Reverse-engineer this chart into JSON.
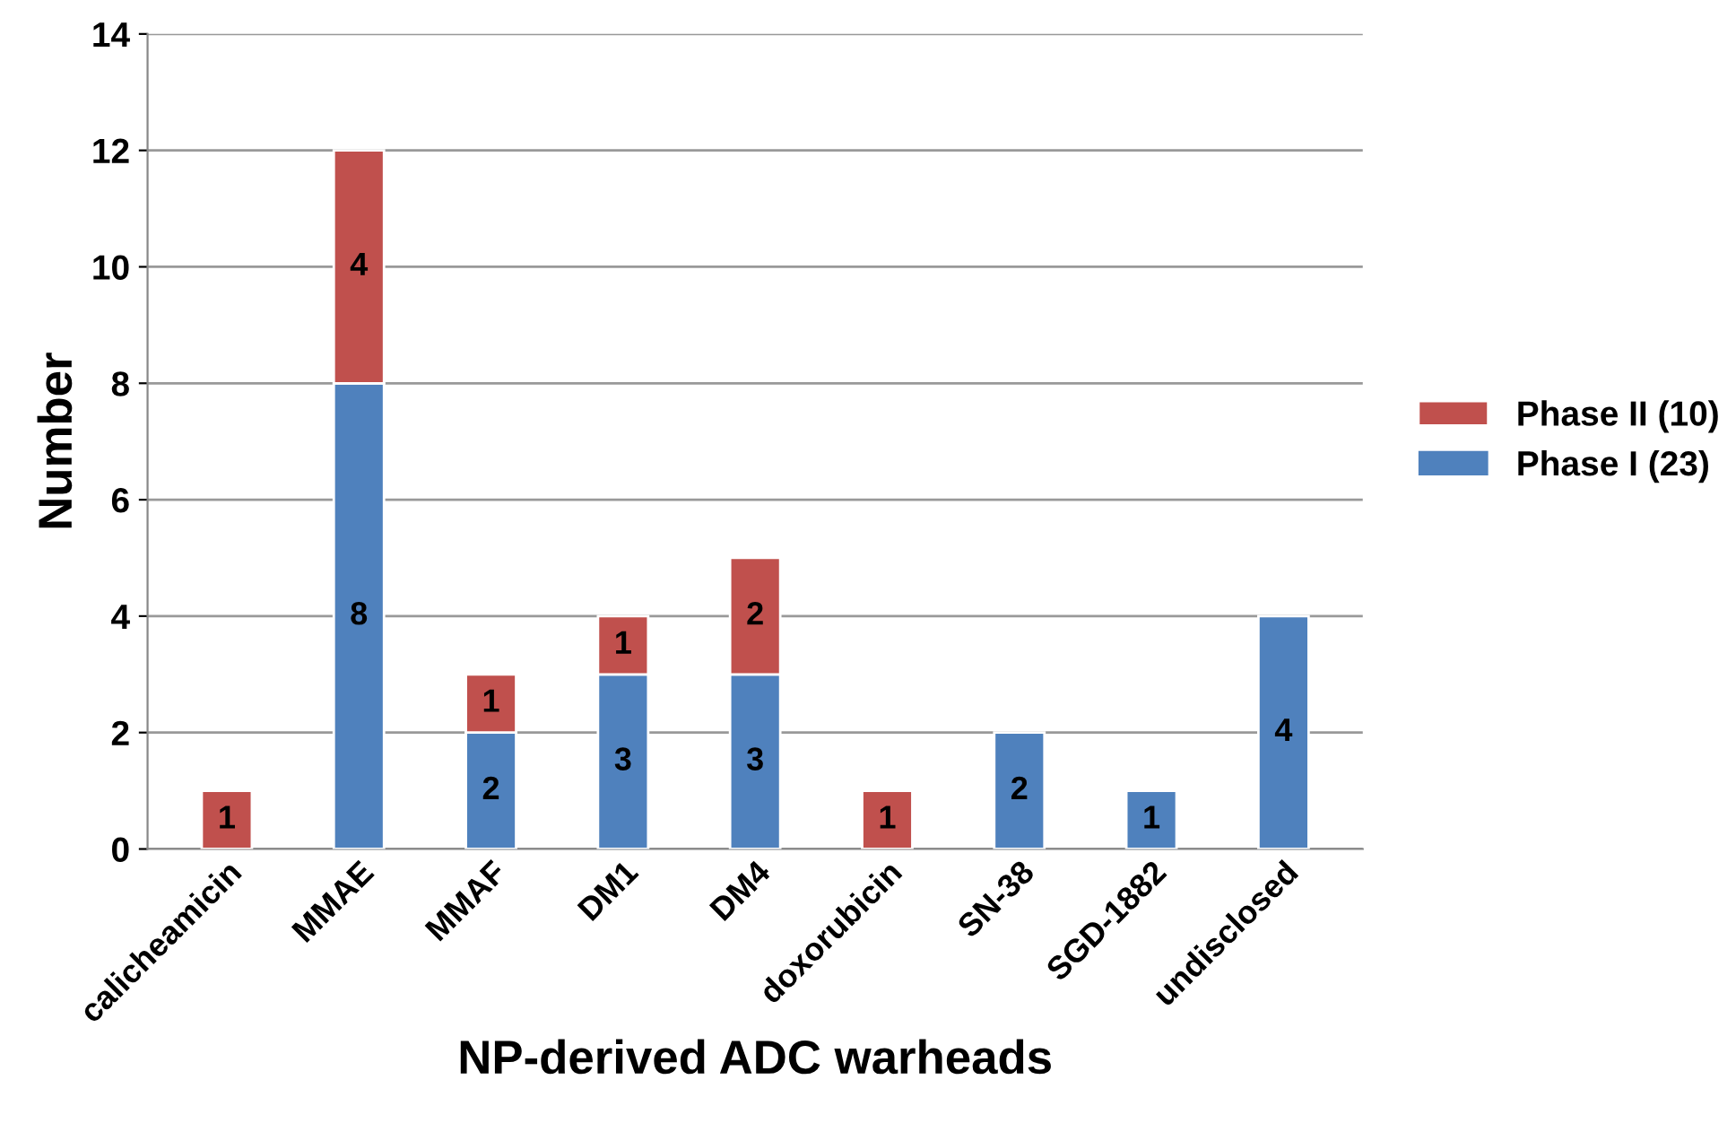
{
  "chart_data": {
    "type": "bar",
    "stacked": true,
    "xlabel": "NP-derived ADC warheads",
    "ylabel": "Number",
    "categories": [
      "calicheamicin",
      "MMAE",
      "MMAF",
      "DM1",
      "DM4",
      "doxorubicin",
      "SN-38",
      "SGD-1882",
      "undisclosed"
    ],
    "series": [
      {
        "name": "Phase I (23)",
        "color": "#4f81bd",
        "values": [
          0,
          8,
          2,
          3,
          3,
          0,
          2,
          1,
          4
        ],
        "value_labels": [
          null,
          "8",
          "2",
          "3",
          "3",
          null,
          "2",
          "1",
          "4"
        ]
      },
      {
        "name": "Phase II (10)",
        "color": "#c0504d",
        "values": [
          1,
          4,
          1,
          1,
          2,
          1,
          0,
          0,
          0
        ],
        "value_labels": [
          "1",
          "4",
          "1",
          "1",
          "2",
          "1",
          null,
          null,
          null
        ]
      }
    ],
    "ylim": [
      0,
      14
    ],
    "yticks": [
      0,
      2,
      4,
      6,
      8,
      10,
      12,
      14
    ],
    "grid": "y",
    "legend": "right"
  }
}
